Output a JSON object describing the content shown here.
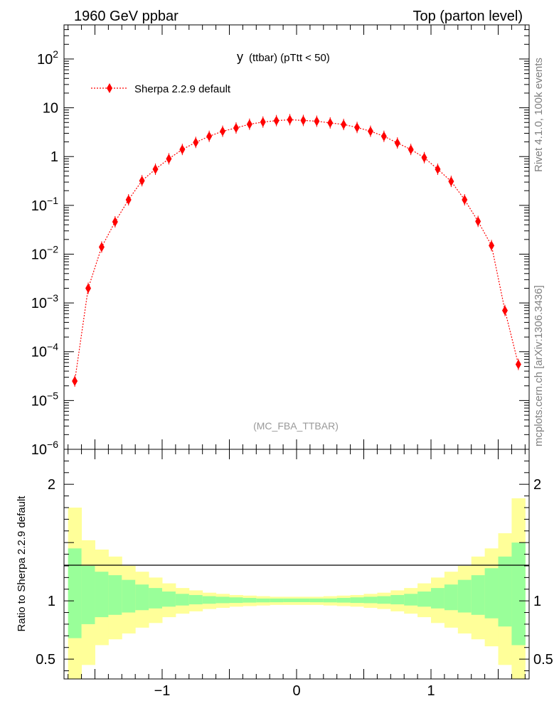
{
  "header": {
    "left": "1960 GeV ppbar",
    "right": "Top (parton level)"
  },
  "side": {
    "rivet": "Rivet 4.1.0,  100k events",
    "mcplots": "mcplots.cern.ch [arXiv:1306.3436]"
  },
  "colors": {
    "series": "#ff0000",
    "band_outer": "#ffff99",
    "band_inner": "#99ff99",
    "side_text": "#808080",
    "analysis_text": "#999999"
  },
  "chart_data": [
    {
      "type": "line",
      "title": "y (ttbar) (pTtt < 50)",
      "title_main": "y",
      "title_rest": "(ttbar) (pTtt < 50)",
      "analysis_label": "(MC_FBA_TTBAR)",
      "yscale": "log",
      "xlim": [
        -1.73,
        1.73
      ],
      "ylim": [
        1e-06,
        500
      ],
      "y_tick_labels": [
        {
          "value": 100,
          "base": "10",
          "exp": "2"
        },
        {
          "value": 10,
          "base": "10",
          "exp": ""
        },
        {
          "value": 1,
          "base": "1",
          "exp": ""
        },
        {
          "value": 0.1,
          "base": "10",
          "exp": "−1"
        },
        {
          "value": 0.01,
          "base": "10",
          "exp": "−2"
        },
        {
          "value": 0.001,
          "base": "10",
          "exp": "−3"
        },
        {
          "value": 0.0001,
          "base": "10",
          "exp": "−4"
        },
        {
          "value": 1e-05,
          "base": "10",
          "exp": "−5"
        },
        {
          "value": 1e-06,
          "base": "10",
          "exp": "−6"
        }
      ],
      "legend": {
        "label": "Sherpa 2.2.9 default",
        "position": "top-left"
      },
      "series": [
        {
          "name": "Sherpa 2.2.9 default",
          "x": [
            -1.65,
            -1.55,
            -1.45,
            -1.35,
            -1.25,
            -1.15,
            -1.05,
            -0.95,
            -0.85,
            -0.75,
            -0.65,
            -0.55,
            -0.45,
            -0.35,
            -0.25,
            -0.15,
            -0.05,
            0.05,
            0.15,
            0.25,
            0.35,
            0.45,
            0.55,
            0.65,
            0.75,
            0.85,
            0.95,
            1.05,
            1.15,
            1.25,
            1.35,
            1.45,
            1.55,
            1.65
          ],
          "y": [
            2.5e-05,
            0.002,
            0.014,
            0.046,
            0.13,
            0.32,
            0.55,
            0.9,
            1.4,
            1.95,
            2.6,
            3.3,
            3.85,
            4.6,
            5.1,
            5.45,
            5.7,
            5.5,
            5.3,
            4.9,
            4.55,
            3.95,
            3.3,
            2.6,
            1.9,
            1.4,
            0.95,
            0.55,
            0.31,
            0.13,
            0.047,
            0.015,
            0.0007,
            5.5e-05
          ]
        }
      ]
    },
    {
      "type": "area",
      "ylabel": "Ratio to Sherpa 2.2.9 default",
      "ylim": [
        0.33,
        2.3
      ],
      "xlim": [
        -1.73,
        1.73
      ],
      "x_tick_labels": [
        "−1",
        "0",
        "1"
      ],
      "x_tick_values": [
        -1,
        0,
        1
      ],
      "y_tick_labels": [
        "0.5",
        "1",
        "2"
      ],
      "y_tick_values": [
        0.5,
        1,
        2
      ],
      "bins": [
        -1.7,
        -1.6,
        -1.5,
        -1.4,
        -1.3,
        -1.2,
        -1.1,
        -1.0,
        -0.9,
        -0.8,
        -0.7,
        -0.6,
        -0.5,
        -0.4,
        -0.3,
        -0.2,
        -0.1,
        0.0,
        0.1,
        0.2,
        0.3,
        0.4,
        0.5,
        0.6,
        0.7,
        0.8,
        0.9,
        1.0,
        1.1,
        1.2,
        1.3,
        1.4,
        1.5,
        1.6,
        1.7
      ],
      "outer_up": [
        1.8,
        1.52,
        1.44,
        1.38,
        1.3,
        1.25,
        1.2,
        1.15,
        1.11,
        1.09,
        1.07,
        1.06,
        1.05,
        1.045,
        1.04,
        1.035,
        1.035,
        1.035,
        1.035,
        1.04,
        1.045,
        1.05,
        1.06,
        1.07,
        1.09,
        1.11,
        1.15,
        1.2,
        1.25,
        1.3,
        1.38,
        1.45,
        1.58,
        1.88
      ],
      "outer_dn": [
        0.2,
        0.45,
        0.62,
        0.67,
        0.72,
        0.77,
        0.81,
        0.86,
        0.89,
        0.91,
        0.93,
        0.94,
        0.95,
        0.955,
        0.96,
        0.965,
        0.965,
        0.965,
        0.965,
        0.96,
        0.955,
        0.95,
        0.94,
        0.93,
        0.91,
        0.89,
        0.86,
        0.81,
        0.77,
        0.72,
        0.67,
        0.61,
        0.45,
        0.2
      ],
      "inner_up": [
        1.45,
        1.3,
        1.25,
        1.22,
        1.18,
        1.14,
        1.11,
        1.08,
        1.06,
        1.05,
        1.04,
        1.035,
        1.03,
        1.025,
        1.02,
        1.02,
        1.02,
        1.02,
        1.02,
        1.02,
        1.025,
        1.03,
        1.035,
        1.04,
        1.05,
        1.06,
        1.08,
        1.11,
        1.14,
        1.18,
        1.22,
        1.28,
        1.38,
        1.5
      ],
      "inner_dn": [
        0.68,
        0.8,
        0.86,
        0.88,
        0.9,
        0.92,
        0.935,
        0.95,
        0.96,
        0.97,
        0.975,
        0.98,
        0.982,
        0.985,
        0.987,
        0.988,
        0.989,
        0.989,
        0.988,
        0.987,
        0.985,
        0.982,
        0.98,
        0.975,
        0.97,
        0.96,
        0.95,
        0.935,
        0.92,
        0.9,
        0.88,
        0.85,
        0.78,
        0.62
      ]
    }
  ]
}
